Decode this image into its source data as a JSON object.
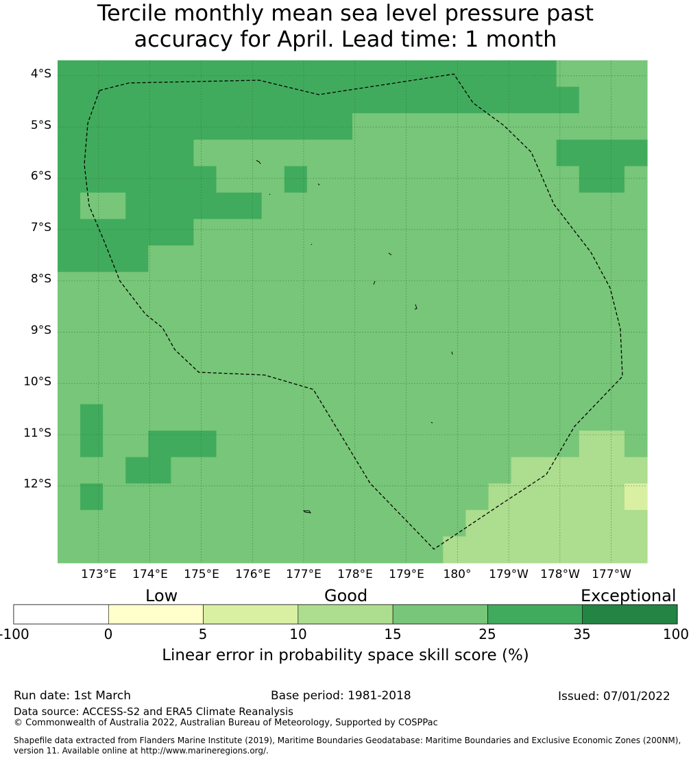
{
  "title": {
    "line1": "Tercile monthly mean sea level pressure past",
    "line2": "accuracy for April. Lead time: 1 month"
  },
  "map": {
    "lat_labels": [
      "4°S",
      "5°S",
      "6°S",
      "7°S",
      "8°S",
      "9°S",
      "10°S",
      "11°S",
      "12°S"
    ],
    "lon_labels": [
      "173°E",
      "174°E",
      "175°E",
      "176°E",
      "177°E",
      "178°E",
      "179°E",
      "180°",
      "179°W",
      "178°W",
      "177°W"
    ],
    "extent": {
      "lon_min": 172.2,
      "lon_max": 183.7,
      "lat_north": -3.7,
      "lat_south": -13.5
    },
    "grid_resolution_deg": 0.83,
    "skill_grid_rows": [
      "33333333333333333333332222",
      "33333333333333333333333222",
      "33333333333332222222222222",
      "33333322222222222222223333",
      "33333332223222222222222332",
      "32233333322222222222222222",
      "33333322222222222222222222",
      "33332222222222222222222222",
      "22222222222222222222222222",
      "22222222222222222222222222",
      "22222222222222222222222222",
      "22222222222222222222222222",
      "22222222222222222222222222",
      "23222222222222222222222222",
      "23223332222222222222222112",
      "22233222222222222222111111",
      "23222222222222222221111110",
      "22222222222222222211111111",
      "22222222222222222111111111"
    ],
    "boundary_label": "EEZ boundary (dashed)"
  },
  "colorbar": {
    "categories": [
      "Low",
      "Good",
      "Exceptional"
    ],
    "ticks": [
      "-100",
      "0",
      "5",
      "10",
      "15",
      "25",
      "35",
      "100"
    ],
    "colors": [
      "#ffffff",
      "#ffffcc",
      "#d9f0a3",
      "#addd8e",
      "#78c679",
      "#41ab5d",
      "#238443"
    ],
    "label": "Linear error in probability space skill score (%)"
  },
  "footer": {
    "run_date": "Run date: 1st March",
    "base_period": "Base period: 1981-2018",
    "issued": "Issued: 07/01/2022",
    "data_source": "Data source: ACCESS-S2 and ERA5 Climate Reanalysis",
    "copyright": "© Commonwealth of Australia 2022, Australian Bureau of Meteorology, Supported by COSPPac",
    "shapefile_1": "Shapefile data extracted from Flanders Marine Institute (2019), Maritime Boundaries Geodatabase: Maritime Boundaries and Exclusive Economic Zones (200NM),",
    "shapefile_2": "version 11. Available online at http://www.marineregions.org/."
  }
}
